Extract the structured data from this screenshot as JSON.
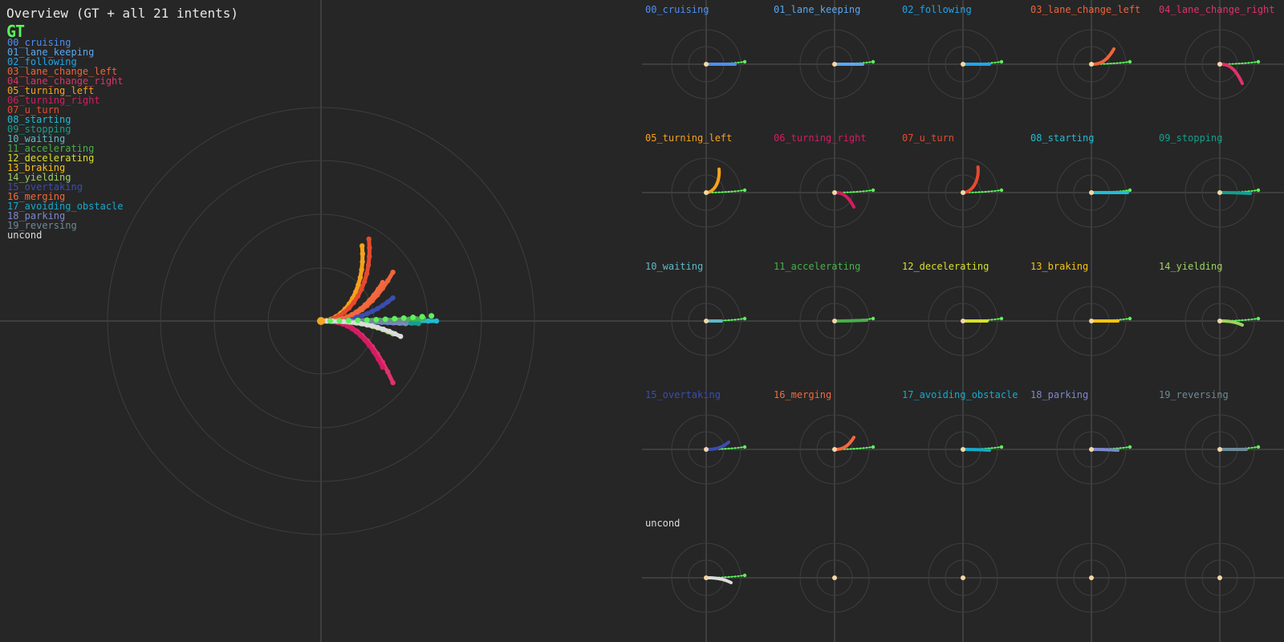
{
  "overview": {
    "title": "Overview (GT + all 21 intents)",
    "gt_label": "GT",
    "gt_color": "#5cf25c"
  },
  "colors": {
    "background": "#262626",
    "axis": "#555555",
    "ring": "#3e3e3e",
    "origin": "#f5d7a6"
  },
  "intents": [
    {
      "label": "00_cruising",
      "color": "#4d8ff0",
      "curve": "straight",
      "len": 36,
      "bend": 0
    },
    {
      "label": "01_lane_keeping",
      "color": "#5aa7f0",
      "curve": "straight",
      "len": 35,
      "bend": 0
    },
    {
      "label": "02_following",
      "color": "#21a4e8",
      "curve": "straight",
      "len": 33,
      "bend": 0
    },
    {
      "label": "03_lane_change_left",
      "color": "#f0643a",
      "curve": "left_turn",
      "len": 28,
      "bend": 19
    },
    {
      "label": "04_lane_change_right",
      "color": "#e0326b",
      "curve": "right_turn",
      "len": 28,
      "bend": 24
    },
    {
      "label": "05_turning_left",
      "color": "#f7a21a",
      "curve": "u_left",
      "len": 18,
      "bend": 22
    },
    {
      "label": "06_turning_right",
      "color": "#d41c62",
      "curve": "right_turn",
      "len": 24,
      "bend": 18
    },
    {
      "label": "07_u_turn",
      "color": "#e64a2e",
      "curve": "u_left",
      "len": 21,
      "bend": 24
    },
    {
      "label": "08_starting",
      "color": "#21bcd4",
      "curve": "straight",
      "len": 45,
      "bend": 0
    },
    {
      "label": "09_stopping",
      "color": "#13a08c",
      "curve": "straight",
      "len": 38,
      "bend": 1
    },
    {
      "label": "10_waiting",
      "color": "#5fb8c6",
      "curve": "straight",
      "len": 19,
      "bend": 0
    },
    {
      "label": "11_accelerating",
      "color": "#47b04b",
      "curve": "straight",
      "len": 40,
      "bend": -1
    },
    {
      "label": "12_decelerating",
      "color": "#d6e02c",
      "curve": "straight",
      "len": 30,
      "bend": 0
    },
    {
      "label": "13_braking",
      "color": "#f7c40e",
      "curve": "straight",
      "len": 33,
      "bend": 0
    },
    {
      "label": "14_yielding",
      "color": "#9ed163",
      "curve": "right_turn",
      "len": 28,
      "bend": 5
    },
    {
      "label": "15_overtaking",
      "color": "#3a4db0",
      "curve": "left_turn",
      "len": 28,
      "bend": 9
    },
    {
      "label": "16_merging",
      "color": "#f4683e",
      "curve": "left_turn",
      "len": 24,
      "bend": 15
    },
    {
      "label": "17_avoiding_obstacle",
      "color": "#16a9c9",
      "curve": "straight",
      "len": 33,
      "bend": 1
    },
    {
      "label": "18_parking",
      "color": "#7e87cc",
      "curve": "straight",
      "len": 33,
      "bend": 1
    },
    {
      "label": "19_reversing",
      "color": "#6e8a96",
      "curve": "straight",
      "len": 33,
      "bend": 0
    },
    {
      "label": "uncond",
      "color": "#dcdcdc",
      "curve": "right_turn",
      "len": 31,
      "bend": 6
    }
  ],
  "empty_panels": 4
}
